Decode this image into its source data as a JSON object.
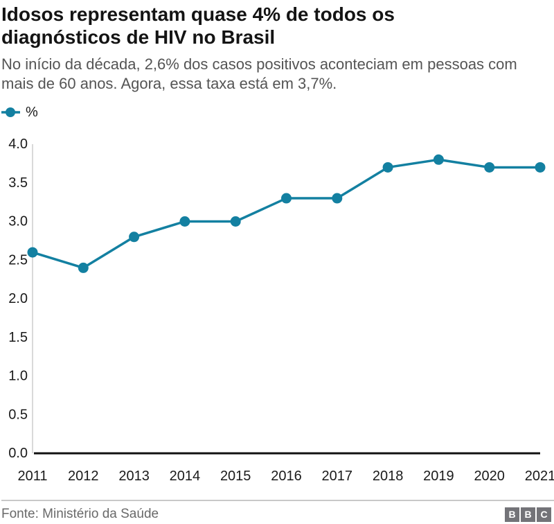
{
  "header": {
    "title": "Idosos representam quase 4% de todos os diagnósticos de HIV no Brasil",
    "subtitle": "No início da década, 2,6% dos casos positivos aconteciam em pessoas com mais de 60 anos. Agora, essa taxa está em 3,7%."
  },
  "legend": {
    "label": "%"
  },
  "chart_data": {
    "type": "line",
    "title": "Idosos representam quase 4% de todos os diagnósticos de HIV no Brasil",
    "categories": [
      "2011",
      "2012",
      "2013",
      "2014",
      "2015",
      "2016",
      "2017",
      "2018",
      "2019",
      "2020",
      "2021"
    ],
    "series": [
      {
        "name": "%",
        "values": [
          2.6,
          2.4,
          2.8,
          3.0,
          3.0,
          3.3,
          3.3,
          3.7,
          3.8,
          3.7,
          3.7
        ]
      }
    ],
    "xlabel": "",
    "ylabel": "%",
    "ylim": [
      0.0,
      4.0
    ],
    "y_ticks": [
      "0.0",
      "0.5",
      "1.0",
      "1.5",
      "2.0",
      "2.5",
      "3.0",
      "3.5",
      "4.0"
    ],
    "grid": "off",
    "legend_position": "top-left",
    "marker": "circle"
  },
  "colors": {
    "line": "#1380A1",
    "axis": "#111111",
    "gridline": "#d9d9d9",
    "title_text": "#141414",
    "subtitle_text": "#545454",
    "tick_text": "#1a1a1a",
    "source_text": "#696969",
    "divider": "#c8c8c8",
    "logo_bg": "#737378"
  },
  "footer": {
    "source": "Fonte: Ministério da Saúde",
    "logo_letters": [
      "B",
      "B",
      "C"
    ]
  }
}
